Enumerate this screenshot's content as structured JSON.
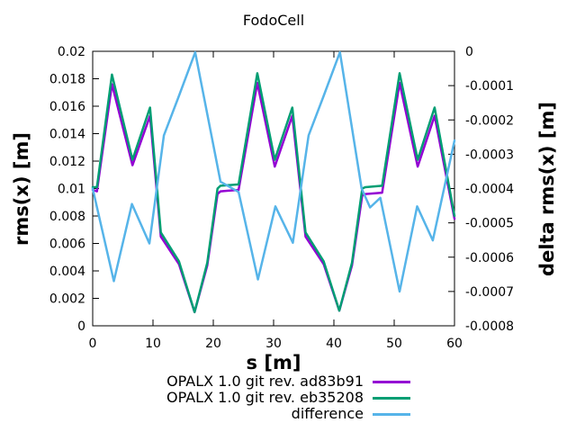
{
  "title": "FodoCell",
  "chart_data": {
    "type": "line",
    "title": "FodoCell",
    "xlabel": "s [m]",
    "ylabel_left": "rms(x) [m]",
    "ylabel_right": "delta rms(x) [m]",
    "x_range": [
      0,
      60
    ],
    "y_left_range": [
      0,
      0.02
    ],
    "y_right_range": [
      -0.0008,
      0
    ],
    "grid": false,
    "legend_position": "below",
    "x_ticks": {
      "values": [
        0,
        10,
        20,
        30,
        40,
        50,
        60
      ],
      "labels": [
        "0",
        "10",
        "20",
        "30",
        "40",
        "50",
        "60"
      ]
    },
    "y_left_ticks": {
      "values": [
        0,
        0.002,
        0.004,
        0.006,
        0.008,
        0.01,
        0.012,
        0.014,
        0.016,
        0.018,
        0.02
      ],
      "labels": [
        "0",
        "0.002",
        "0.004",
        "0.006",
        "0.008",
        "0.01",
        "0.012",
        "0.014",
        "0.016",
        "0.018",
        "0.02"
      ]
    },
    "y_right_ticks": {
      "values": [
        0,
        -0.0001,
        -0.0002,
        -0.0003,
        -0.0004,
        -0.0005,
        -0.0006,
        -0.0007,
        -0.0008
      ],
      "labels": [
        "0",
        "-0.0001",
        "-0.0002",
        "-0.0003",
        "-0.0004",
        "-0.0005",
        "-0.0006",
        "-0.0007",
        "-0.0008"
      ]
    },
    "series": [
      {
        "name": "OPALX 1.0 git rev. ad83b91",
        "id": "opalx-ad83b91",
        "color": "#9400d3",
        "axis": "left",
        "x": [
          0,
          0.7,
          3.2,
          6.6,
          9.5,
          11.3,
          14.3,
          16.9,
          19.0,
          20.7,
          21.2,
          24.2,
          27.3,
          30.2,
          33.1,
          35.3,
          38.3,
          40.9,
          43.0,
          44.7,
          45.2,
          48.0,
          50.9,
          53.9,
          56.7,
          60.0
        ],
        "y": [
          0.0099,
          0.0098,
          0.0176,
          0.0117,
          0.0153,
          0.0065,
          0.0045,
          0.001,
          0.0044,
          0.0096,
          0.0098,
          0.0099,
          0.0177,
          0.0116,
          0.0153,
          0.0065,
          0.0045,
          0.0011,
          0.0044,
          0.0095,
          0.0096,
          0.0097,
          0.0177,
          0.0116,
          0.0153,
          0.0078
        ]
      },
      {
        "name": "OPALX 1.0 git rev. eb35208",
        "id": "opalx-eb35208",
        "color": "#009e73",
        "axis": "left",
        "x": [
          0,
          0.7,
          3.2,
          6.6,
          9.5,
          11.3,
          14.3,
          16.9,
          19.0,
          20.7,
          21.2,
          24.2,
          27.3,
          30.2,
          33.1,
          35.3,
          38.3,
          40.9,
          43.0,
          44.7,
          45.2,
          48.0,
          50.9,
          53.9,
          56.7,
          60.0
        ],
        "y": [
          0.0101,
          0.0101,
          0.0183,
          0.0121,
          0.0159,
          0.0068,
          0.0047,
          0.001,
          0.0046,
          0.01,
          0.0102,
          0.0103,
          0.0184,
          0.0121,
          0.0159,
          0.0068,
          0.0047,
          0.0011,
          0.0046,
          0.01,
          0.0101,
          0.0102,
          0.0184,
          0.0121,
          0.0159,
          0.008
        ]
      },
      {
        "name": "difference",
        "id": "difference",
        "color": "#56b4e9",
        "axis": "right",
        "x": [
          0,
          3.5,
          6.5,
          9.4,
          11.8,
          14.2,
          17.0,
          21.2,
          24.2,
          27.4,
          30.3,
          33.2,
          35.8,
          38.2,
          41.0,
          44.6,
          46.0,
          47.7,
          50.9,
          53.8,
          56.4,
          60.0
        ],
        "y": [
          -0.0004,
          -0.00067,
          -0.000445,
          -0.00056,
          -0.000245,
          -0.000135,
          -3e-06,
          -0.00038,
          -0.00041,
          -0.000665,
          -0.000452,
          -0.000558,
          -0.000245,
          -0.000135,
          -3e-06,
          -0.0004,
          -0.000455,
          -0.000427,
          -0.0007,
          -0.000452,
          -0.000551,
          -0.00026
        ]
      }
    ]
  }
}
